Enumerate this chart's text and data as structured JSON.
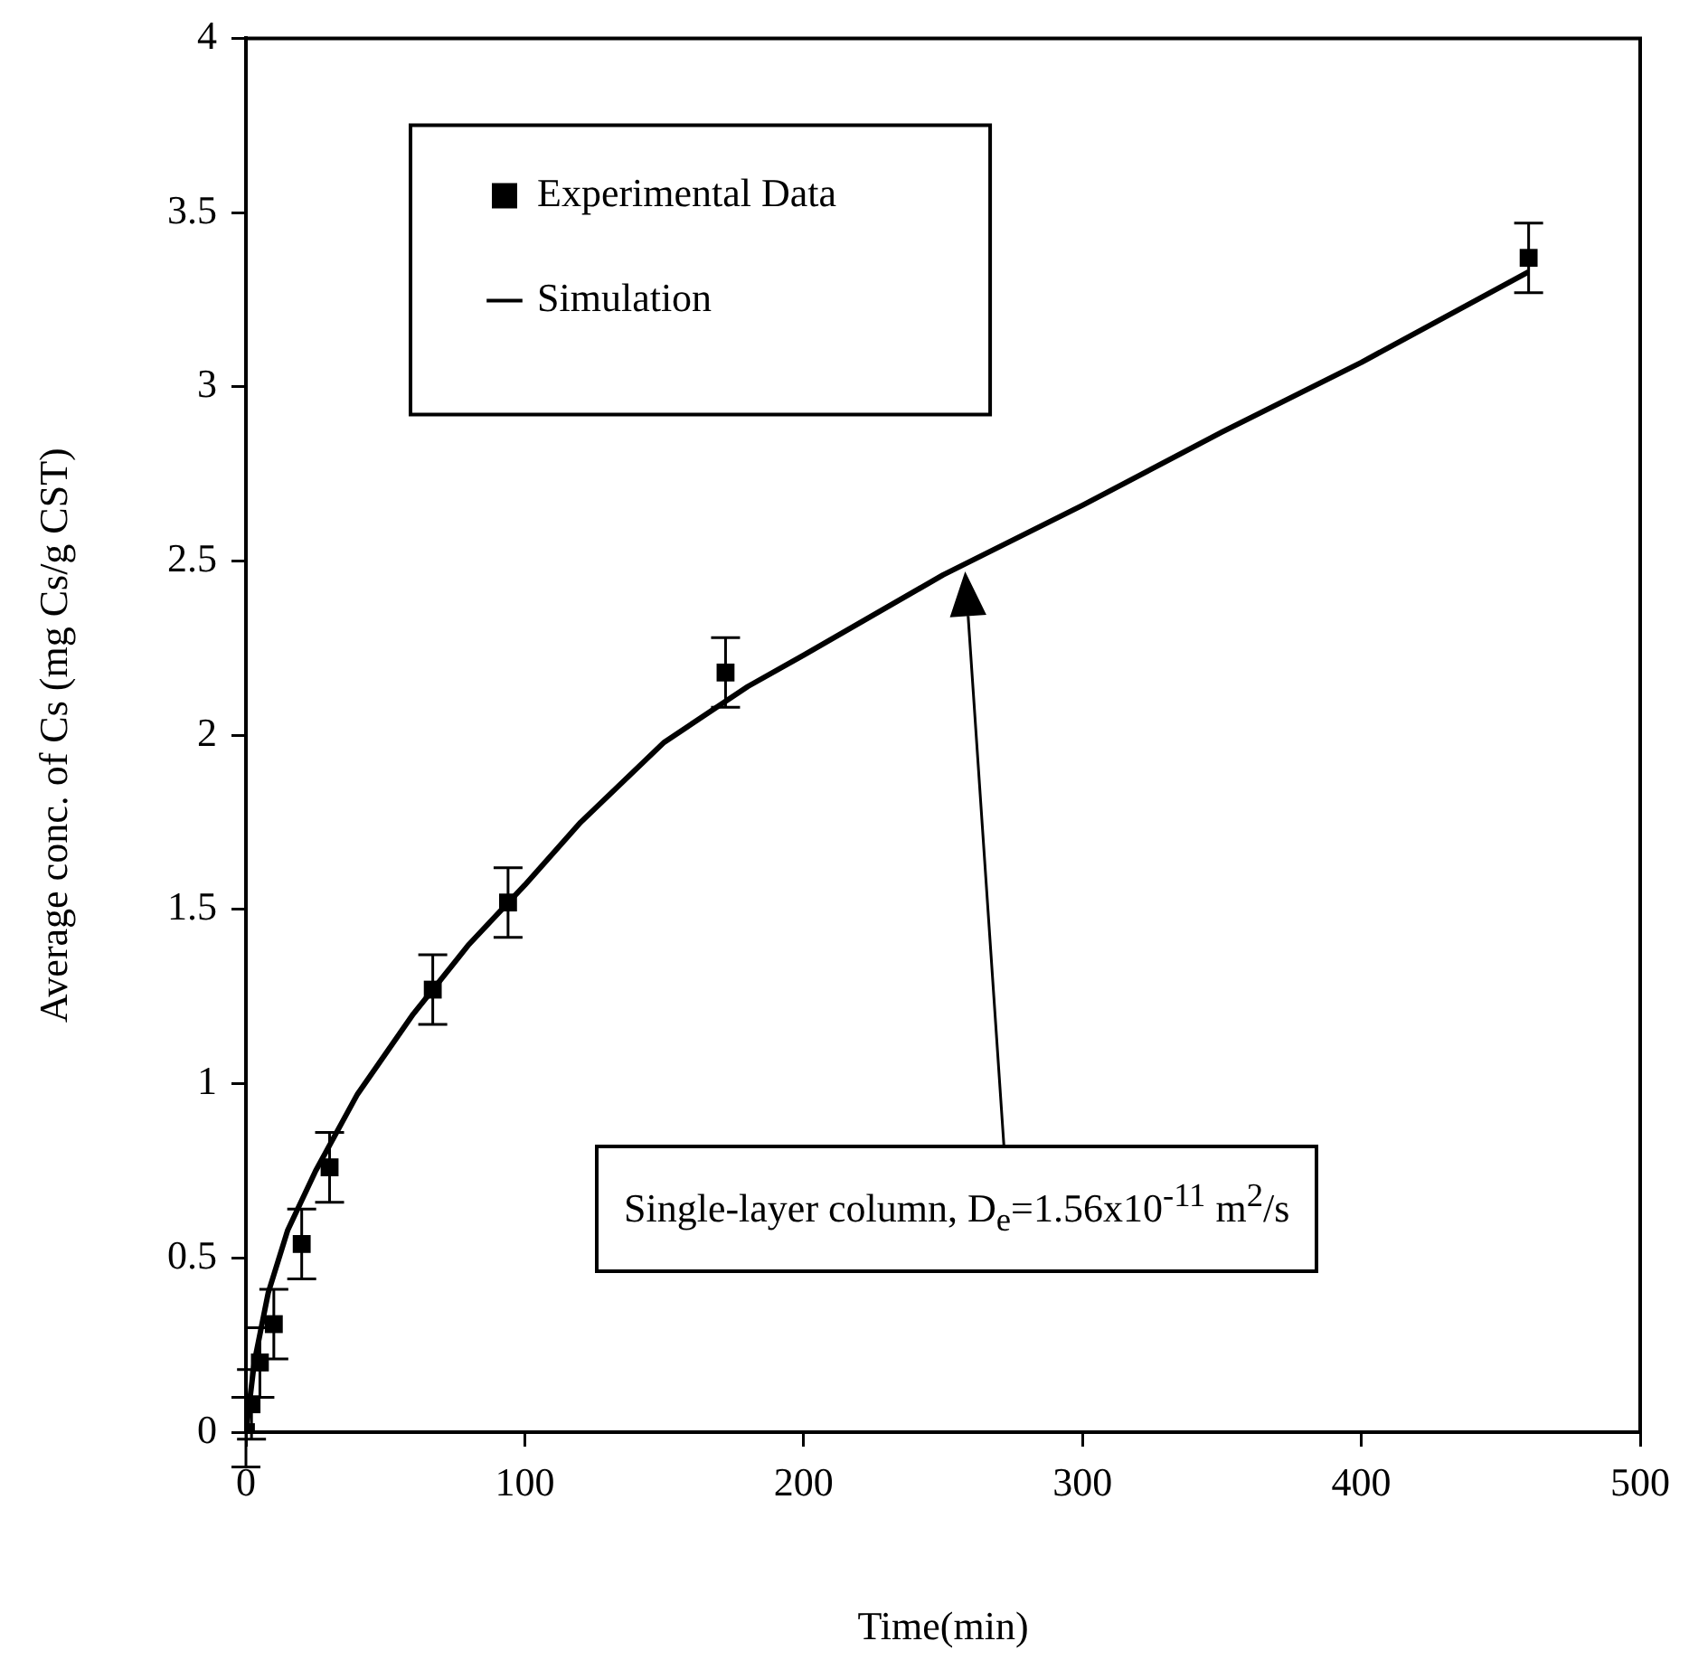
{
  "chart_data": {
    "type": "scatter",
    "xlabel": "Time(min)",
    "ylabel": "Average conc. of Cs (mg Cs/g CST)",
    "xlim": [
      0,
      500
    ],
    "xticks": [
      0,
      100,
      200,
      300,
      400,
      500
    ],
    "ylim": [
      0,
      4
    ],
    "yticks": [
      0,
      0.5,
      1,
      1.5,
      2,
      2.5,
      3,
      3.5,
      4
    ],
    "grid": false,
    "legend": "top left",
    "series": [
      {
        "name": "Experimental Data",
        "marker": "square",
        "color": "#000000",
        "x": [
          0,
          2,
          5,
          10,
          20,
          30,
          67,
          94,
          172,
          460
        ],
        "values": [
          0,
          0.08,
          0.2,
          0.31,
          0.54,
          0.76,
          1.27,
          1.52,
          2.18,
          3.37
        ],
        "errors": [
          0.1,
          0.1,
          0.1,
          0.1,
          0.1,
          0.1,
          0.1,
          0.1,
          0.1,
          0.1
        ]
      },
      {
        "name": "Simulation",
        "type": "line",
        "marker": "none",
        "line_style": "solid",
        "color": "#000000",
        "x": [
          0,
          3,
          8,
          15,
          25,
          40,
          60,
          80,
          100,
          120,
          150,
          180,
          200,
          250,
          300,
          350,
          400,
          460
        ],
        "values": [
          0,
          0.2,
          0.4,
          0.58,
          0.75,
          0.97,
          1.2,
          1.4,
          1.57,
          1.75,
          1.98,
          2.14,
          2.23,
          2.46,
          2.66,
          2.87,
          3.07,
          3.33
        ]
      }
    ],
    "annotations": [
      "Single-layer column, D$_{e}$=1.56x10$^{-11}$ m$^{2}$/s"
    ]
  }
}
